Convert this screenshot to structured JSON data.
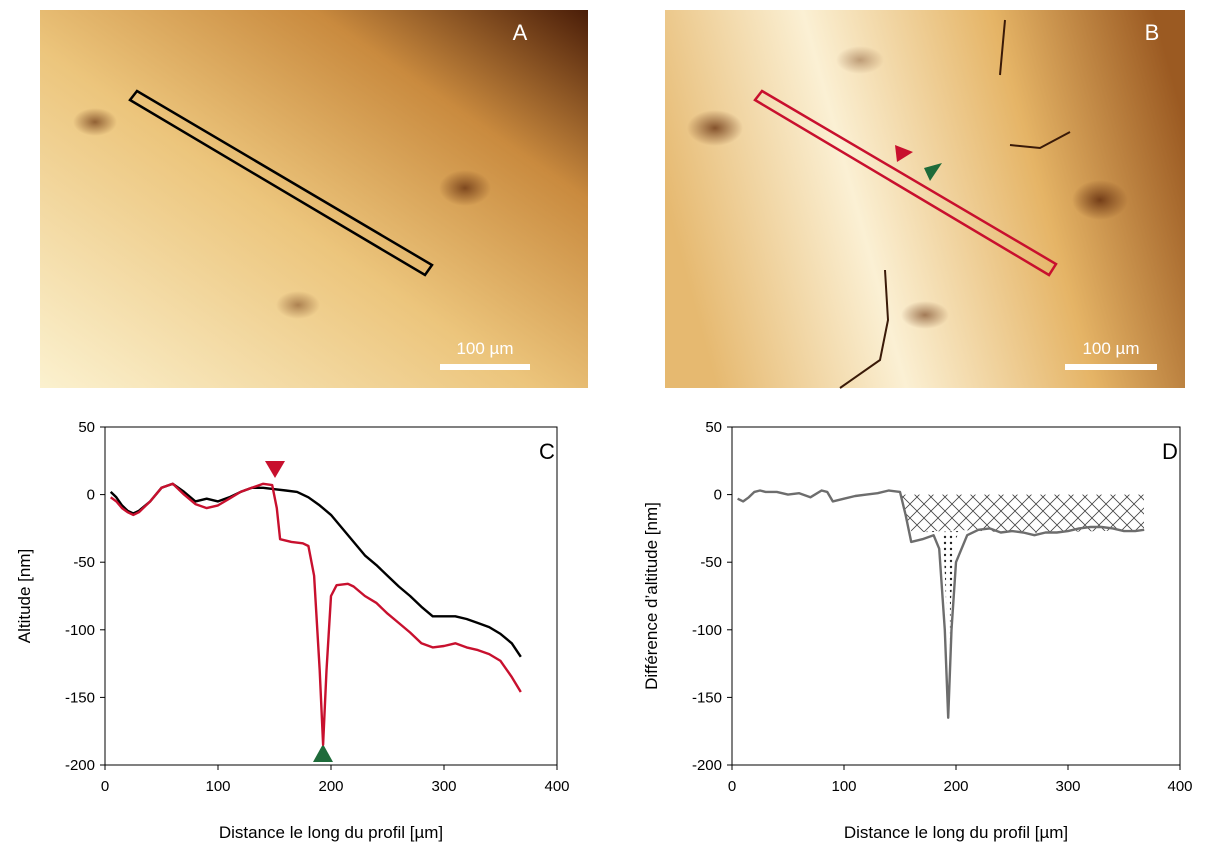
{
  "images": [
    {
      "label": "A",
      "scale_bar": "100 µm"
    },
    {
      "label": "B",
      "scale_bar": "100 µm"
    }
  ],
  "chart_data": [
    {
      "type": "line",
      "panel_label": "C",
      "y_label": "Altitude [nm]",
      "x_label": "Distance le long du profil  [µm]",
      "xlim": [
        0,
        400
      ],
      "xticks": [
        0,
        100,
        200,
        300,
        400
      ],
      "ylim": [
        -200,
        50
      ],
      "yticks": [
        -200,
        -150,
        -100,
        -50,
        0,
        50
      ],
      "series": [
        {
          "color": "#000000",
          "x": [
            5,
            10,
            15,
            20,
            25,
            30,
            40,
            50,
            60,
            70,
            80,
            90,
            100,
            110,
            120,
            130,
            140,
            150,
            160,
            170,
            180,
            190,
            200,
            210,
            220,
            230,
            240,
            250,
            260,
            270,
            280,
            290,
            300,
            310,
            320,
            330,
            340,
            350,
            360,
            368
          ],
          "values": [
            2,
            -2,
            -8,
            -12,
            -14,
            -12,
            -5,
            5,
            8,
            2,
            -5,
            -3,
            -5,
            -2,
            2,
            5,
            5,
            4,
            3,
            2,
            -2,
            -8,
            -15,
            -25,
            -35,
            -45,
            -52,
            -60,
            -68,
            -75,
            -83,
            -90,
            -90,
            -90,
            -92,
            -95,
            -98,
            -103,
            -110,
            -120
          ]
        },
        {
          "color": "#c8102e",
          "x": [
            5,
            10,
            15,
            20,
            25,
            30,
            40,
            50,
            60,
            70,
            80,
            90,
            100,
            110,
            120,
            130,
            140,
            148,
            152,
            155,
            165,
            175,
            180,
            185,
            190,
            193,
            196,
            200,
            205,
            215,
            220,
            230,
            240,
            250,
            260,
            270,
            280,
            290,
            300,
            310,
            320,
            330,
            340,
            350,
            360,
            368
          ],
          "values": [
            -2,
            -5,
            -10,
            -13,
            -15,
            -13,
            -5,
            5,
            8,
            0,
            -7,
            -10,
            -8,
            -3,
            2,
            5,
            8,
            7,
            -10,
            -33,
            -35,
            -36,
            -38,
            -60,
            -130,
            -185,
            -130,
            -75,
            -67,
            -66,
            -68,
            -75,
            -80,
            -88,
            -95,
            -102,
            -110,
            -113,
            -112,
            -110,
            -113,
            -115,
            -118,
            -123,
            -135,
            -146
          ]
        }
      ]
    },
    {
      "type": "line",
      "panel_label": "D",
      "y_label": "Différence d’altitude [nm]",
      "x_label": "Distance le long du profil  [µm]",
      "xlim": [
        0,
        400
      ],
      "xticks": [
        0,
        100,
        200,
        300,
        400
      ],
      "ylim": [
        -200,
        50
      ],
      "yticks": [
        -200,
        -150,
        -100,
        -50,
        0,
        50
      ],
      "series": [
        {
          "color": "#6d6d6d",
          "x": [
            5,
            10,
            15,
            20,
            25,
            30,
            40,
            50,
            60,
            70,
            80,
            85,
            90,
            100,
            110,
            120,
            130,
            140,
            150,
            155,
            160,
            170,
            180,
            185,
            190,
            193,
            196,
            200,
            210,
            220,
            230,
            240,
            250,
            260,
            270,
            280,
            290,
            300,
            310,
            320,
            330,
            340,
            350,
            360,
            368
          ],
          "values": [
            -3,
            -5,
            -2,
            2,
            3,
            2,
            2,
            0,
            1,
            -2,
            3,
            2,
            -5,
            -3,
            -1,
            0,
            1,
            3,
            2,
            -15,
            -35,
            -33,
            -30,
            -40,
            -100,
            -165,
            -100,
            -50,
            -30,
            -26,
            -25,
            -28,
            -27,
            -28,
            -30,
            -28,
            -28,
            -27,
            -25,
            -24,
            -24,
            -25,
            -27,
            -27,
            -26
          ]
        }
      ]
    }
  ]
}
